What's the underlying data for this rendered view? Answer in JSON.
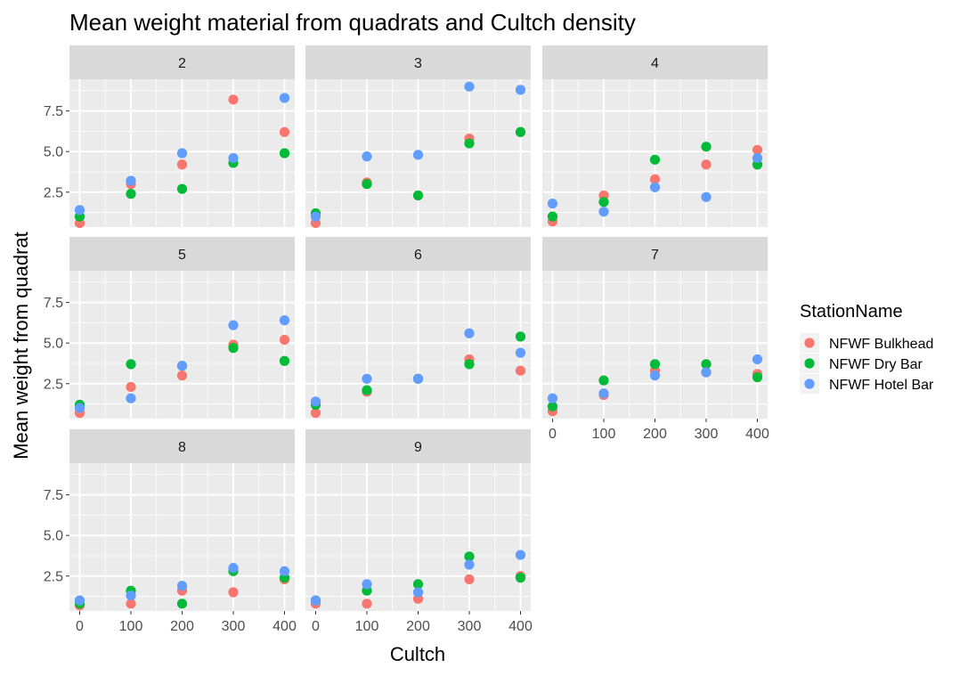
{
  "chart_data": {
    "type": "scatter",
    "title": "Mean weight material from quadrats and Cultch density",
    "xlabel": "Cultch",
    "ylabel": "Mean weight from quadrat",
    "x_ticks": [
      0,
      100,
      200,
      300,
      400
    ],
    "y_ticks": [
      2.5,
      5.0,
      7.5
    ],
    "y_tick_labels": [
      "2.5",
      "5.0",
      "7.5"
    ],
    "xlim": [
      -20,
      420
    ],
    "ylim": [
      0.35,
      9.45
    ],
    "grid": true,
    "legend": {
      "title": "StationName",
      "position": "right"
    },
    "series": [
      {
        "name": "NFWF Bulkhead",
        "color": "#F8766D"
      },
      {
        "name": "NFWF Dry Bar",
        "color": "#00BA38"
      },
      {
        "name": "NFWF Hotel Bar",
        "color": "#619CFF"
      }
    ],
    "x": [
      0,
      100,
      200,
      300,
      400
    ],
    "facets": [
      {
        "label": "2",
        "values": [
          [
            0.6,
            3.0,
            4.2,
            8.2,
            6.2
          ],
          [
            1.0,
            2.4,
            2.7,
            4.3,
            4.9
          ],
          [
            1.4,
            3.2,
            4.9,
            4.6,
            8.3
          ]
        ]
      },
      {
        "label": "3",
        "values": [
          [
            0.6,
            3.1,
            2.3,
            5.8,
            6.2
          ],
          [
            1.2,
            3.0,
            2.3,
            5.5,
            6.2
          ],
          [
            1.0,
            4.7,
            4.8,
            9.0,
            8.8
          ]
        ]
      },
      {
        "label": "4",
        "values": [
          [
            0.7,
            2.3,
            3.3,
            4.2,
            5.1
          ],
          [
            1.0,
            1.9,
            4.5,
            5.3,
            4.2
          ],
          [
            1.8,
            1.3,
            2.8,
            2.2,
            4.6
          ]
        ]
      },
      {
        "label": "5",
        "values": [
          [
            0.7,
            2.3,
            3.0,
            4.9,
            5.2
          ],
          [
            1.2,
            3.7,
            3.6,
            4.7,
            3.9
          ],
          [
            1.0,
            1.6,
            3.6,
            6.1,
            6.4
          ]
        ]
      },
      {
        "label": "6",
        "values": [
          [
            0.7,
            2.0,
            2.8,
            4.0,
            3.3
          ],
          [
            1.2,
            2.1,
            2.8,
            3.7,
            5.4
          ],
          [
            1.4,
            2.8,
            2.8,
            5.6,
            4.4
          ]
        ]
      },
      {
        "label": "7",
        "values": [
          [
            0.8,
            1.8,
            3.3,
            3.2,
            3.1
          ],
          [
            1.1,
            2.7,
            3.7,
            3.7,
            2.9
          ],
          [
            1.6,
            1.9,
            3.0,
            3.2,
            4.0
          ]
        ]
      },
      {
        "label": "8",
        "values": [
          [
            0.7,
            0.8,
            1.6,
            1.5,
            2.3
          ],
          [
            0.8,
            1.6,
            0.8,
            2.8,
            2.4
          ],
          [
            1.0,
            1.3,
            1.9,
            3.0,
            2.8
          ]
        ]
      },
      {
        "label": "9",
        "values": [
          [
            0.8,
            0.8,
            1.1,
            2.3,
            2.5
          ],
          [
            1.0,
            1.6,
            2.0,
            3.7,
            2.4
          ],
          [
            1.0,
            2.0,
            1.5,
            3.2,
            3.8
          ]
        ]
      }
    ]
  }
}
